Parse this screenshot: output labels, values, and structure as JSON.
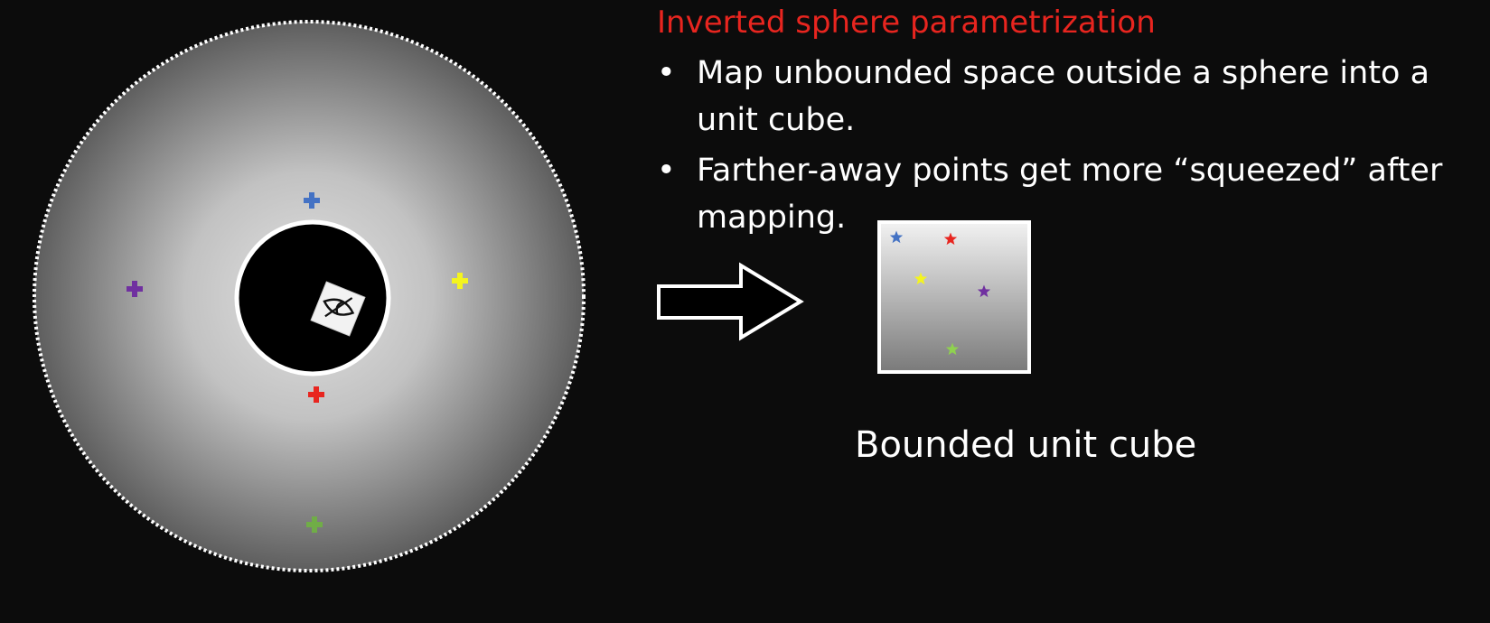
{
  "heading": "Inverted sphere parametrization",
  "heading_color": "#e8251f",
  "bullets": [
    {
      "marker": "•",
      "text": "Map unbounded space outside a sphere into a unit cube."
    },
    {
      "marker": "•",
      "text": "Farther-away points get more “squeezed” after mapping."
    }
  ],
  "cube_caption": "Bounded unit cube",
  "sphere_markers": [
    {
      "name": "blue-cross-marker",
      "color": "#4472c4",
      "shape": "cross"
    },
    {
      "name": "purple-cross-marker",
      "color": "#7030a0",
      "shape": "cross"
    },
    {
      "name": "yellow-cross-marker",
      "color": "#f4f41e",
      "shape": "cross"
    },
    {
      "name": "red-cross-marker",
      "color": "#e8251f",
      "shape": "cross"
    },
    {
      "name": "green-cross-marker",
      "color": "#70ad47",
      "shape": "cross"
    }
  ],
  "cube_markers": [
    {
      "name": "blue-star-marker",
      "color": "#4472c4",
      "shape": "star"
    },
    {
      "name": "red-star-marker",
      "color": "#e8251f",
      "shape": "star"
    },
    {
      "name": "yellow-star-marker",
      "color": "#f4f41e",
      "shape": "star"
    },
    {
      "name": "purple-star-marker",
      "color": "#7030a0",
      "shape": "star"
    },
    {
      "name": "green-star-marker",
      "color": "#8fd14f",
      "shape": "star"
    }
  ],
  "icons": {
    "camera": "eye-camera-icon",
    "arrow": "right-arrow-icon"
  }
}
